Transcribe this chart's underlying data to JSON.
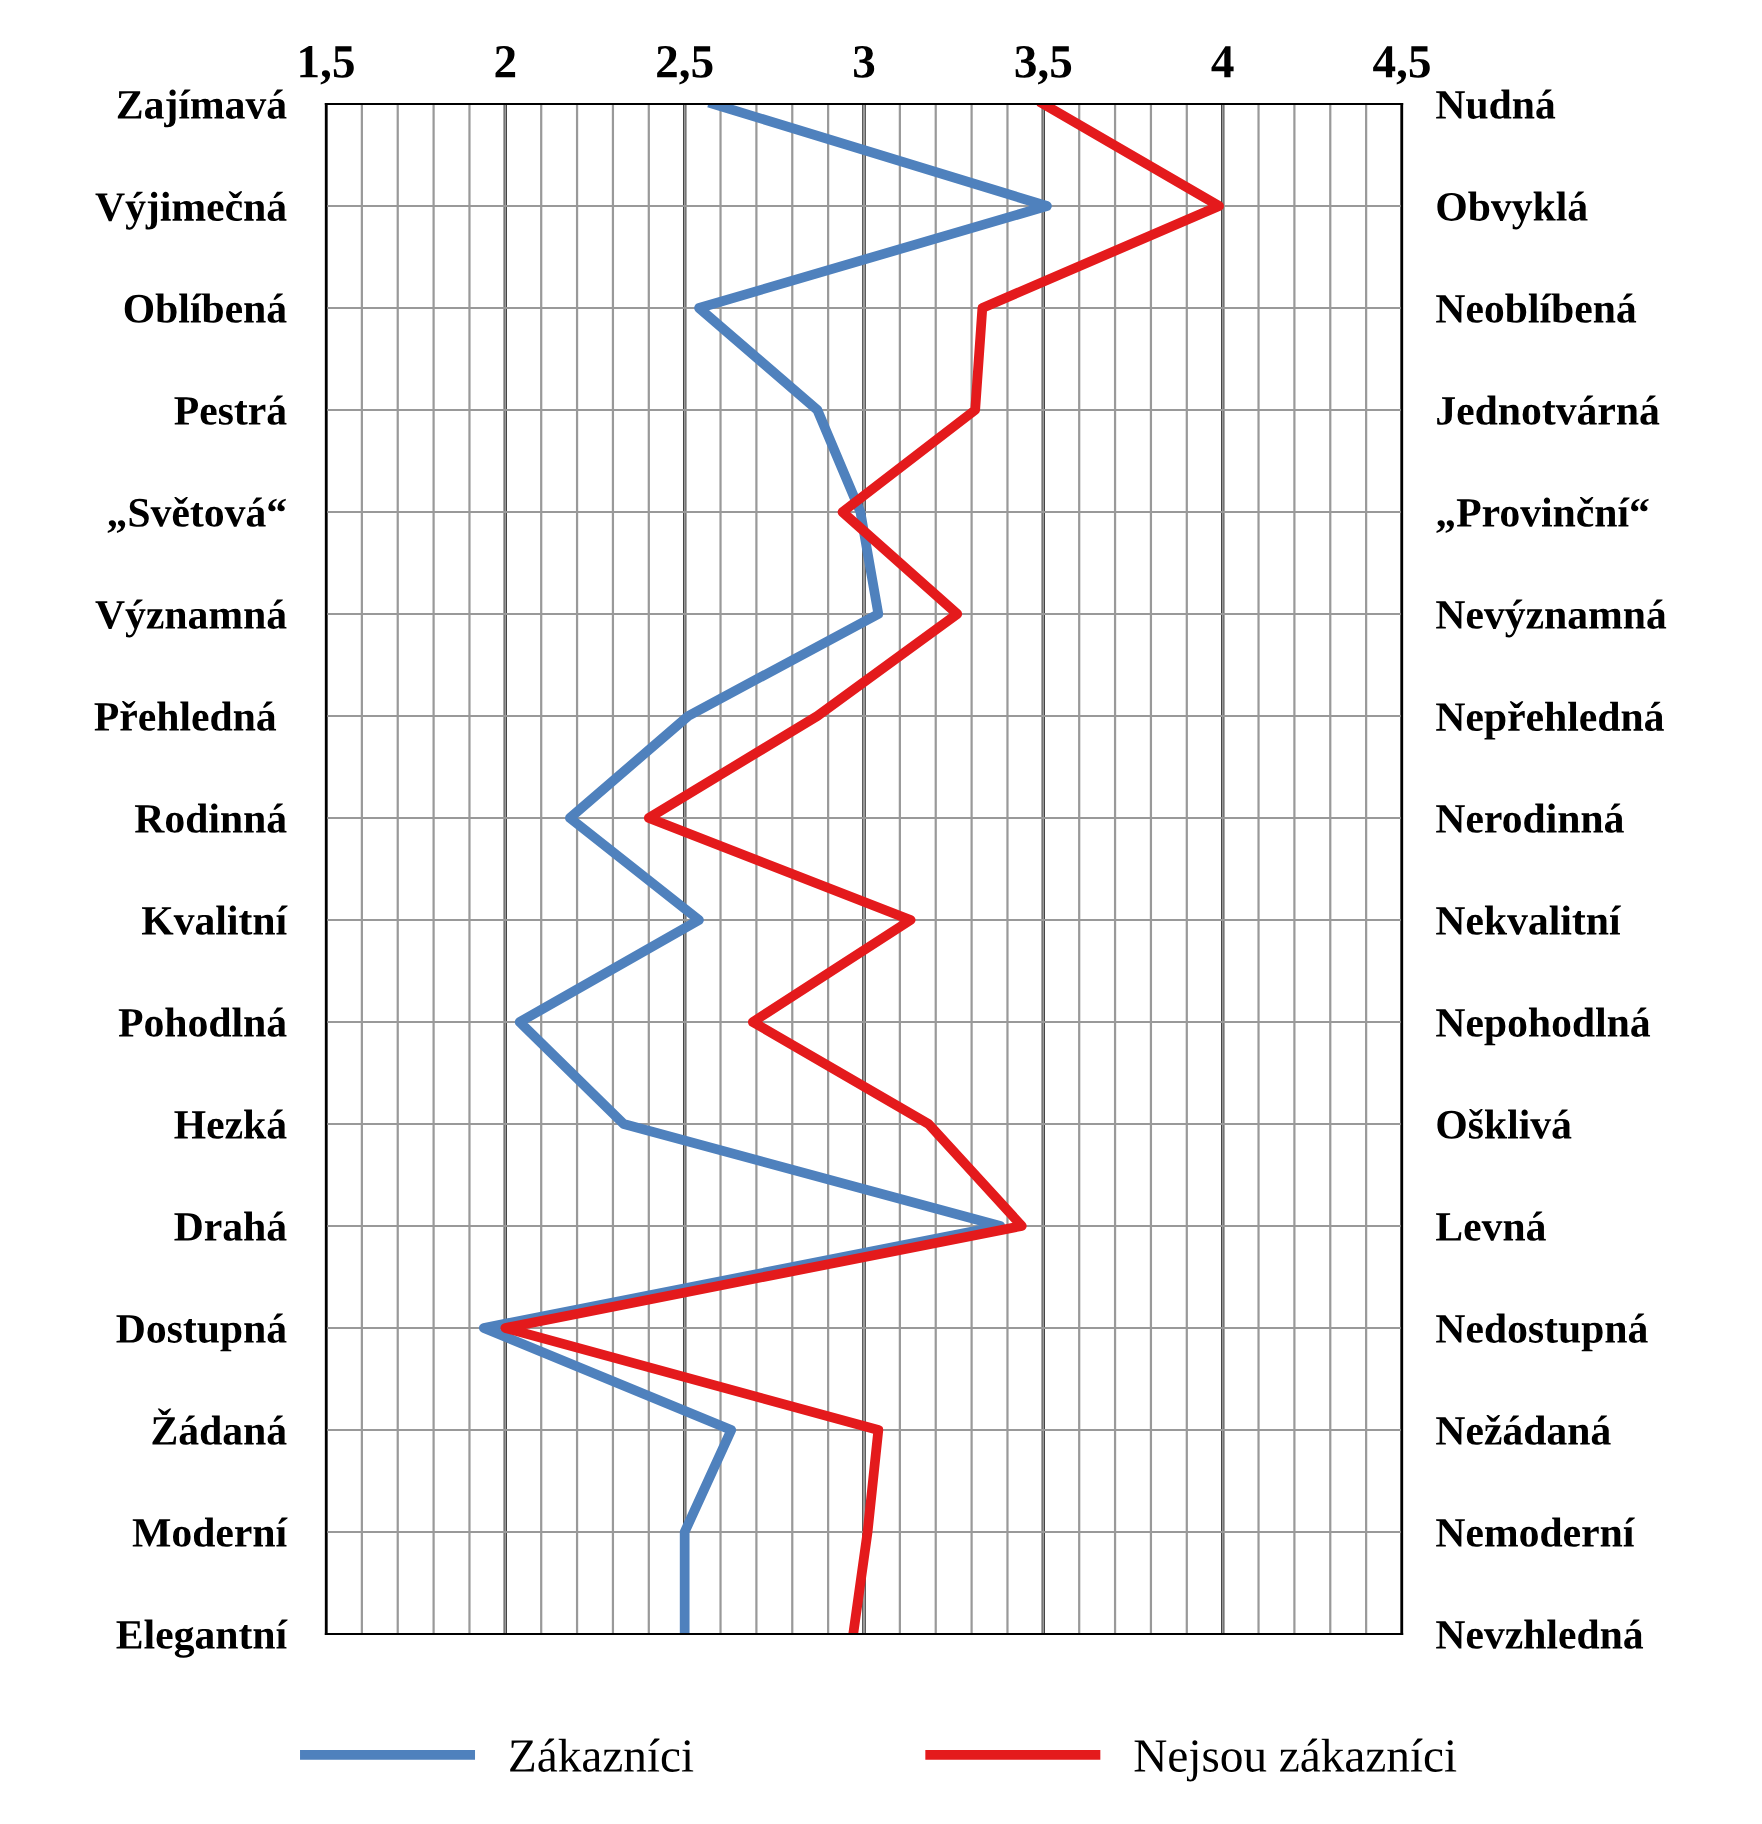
{
  "chart_data": {
    "type": "line",
    "orientation": "horizontal",
    "categories": [
      "Zajímavá",
      "Výjimečná",
      "Oblíbená",
      "Pestrá",
      "„Světová“",
      "Významná",
      "Přehledná ",
      "Rodinná",
      "Kvalitní",
      "Pohodlná",
      "Hezká",
      "Drahá",
      "Dostupná",
      "Žádaná",
      "Moderní",
      "Elegantní"
    ],
    "y2_categories": [
      "Nudná",
      "Obvyklá",
      "Neoblíbená",
      "Jednotvárná",
      "„Provinční“",
      "Nevýznamná",
      "Nepřehledná",
      "Nerodinná",
      "Nekvalitní",
      "Nepohodlná",
      "Ošklivá",
      "Levná",
      "Nedostupná",
      "Nežádaná",
      "Nemoderní",
      "Nevzhledná"
    ],
    "series": [
      {
        "name": "Zákazníci",
        "color": "#4f81bd",
        "values": [
          2.58,
          3.51,
          2.54,
          2.87,
          2.99,
          3.04,
          2.51,
          2.18,
          2.54,
          2.04,
          2.33,
          3.38,
          1.94,
          2.63,
          2.5,
          2.5
        ]
      },
      {
        "name": "Nejsou zákazníci",
        "color": "#e41a1c",
        "values": [
          3.5,
          3.99,
          3.33,
          3.31,
          2.94,
          3.26,
          2.87,
          2.4,
          3.13,
          2.69,
          3.18,
          3.44,
          2.0,
          3.04,
          3.01,
          2.97
        ]
      }
    ],
    "xlim": [
      1.5,
      4.5
    ],
    "xticks": [
      {
        "value": 1.5,
        "label": "1,5"
      },
      {
        "value": 1.6,
        "label": null
      },
      {
        "value": 1.7,
        "label": null
      },
      {
        "value": 1.8,
        "label": null
      },
      {
        "value": 1.9,
        "label": null
      },
      {
        "value": 2,
        "label": "2"
      },
      {
        "value": 2.1,
        "label": null
      },
      {
        "value": 2.2,
        "label": null
      },
      {
        "value": 2.3,
        "label": null
      },
      {
        "value": 2.4,
        "label": null
      },
      {
        "value": 2.5,
        "label": "2,5"
      },
      {
        "value": 2.6,
        "label": null
      },
      {
        "value": 2.7,
        "label": null
      },
      {
        "value": 2.8,
        "label": null
      },
      {
        "value": 2.9,
        "label": null
      },
      {
        "value": 3,
        "label": "3"
      },
      {
        "value": 3.1,
        "label": null
      },
      {
        "value": 3.2,
        "label": null
      },
      {
        "value": 3.3,
        "label": null
      },
      {
        "value": 3.4,
        "label": null
      },
      {
        "value": 3.5,
        "label": "3,5"
      },
      {
        "value": 3.6,
        "label": null
      },
      {
        "value": 3.7,
        "label": null
      },
      {
        "value": 3.8,
        "label": null
      },
      {
        "value": 3.9,
        "label": null
      },
      {
        "value": 4,
        "label": "4"
      },
      {
        "value": 4.1,
        "label": null
      },
      {
        "value": 4.2,
        "label": null
      },
      {
        "value": 4.3,
        "label": null
      },
      {
        "value": 4.4,
        "label": null
      },
      {
        "value": 4.5,
        "label": "4,5"
      }
    ],
    "grid": true,
    "legend": "bottom",
    "marker": "none",
    "line_style": "solid"
  }
}
